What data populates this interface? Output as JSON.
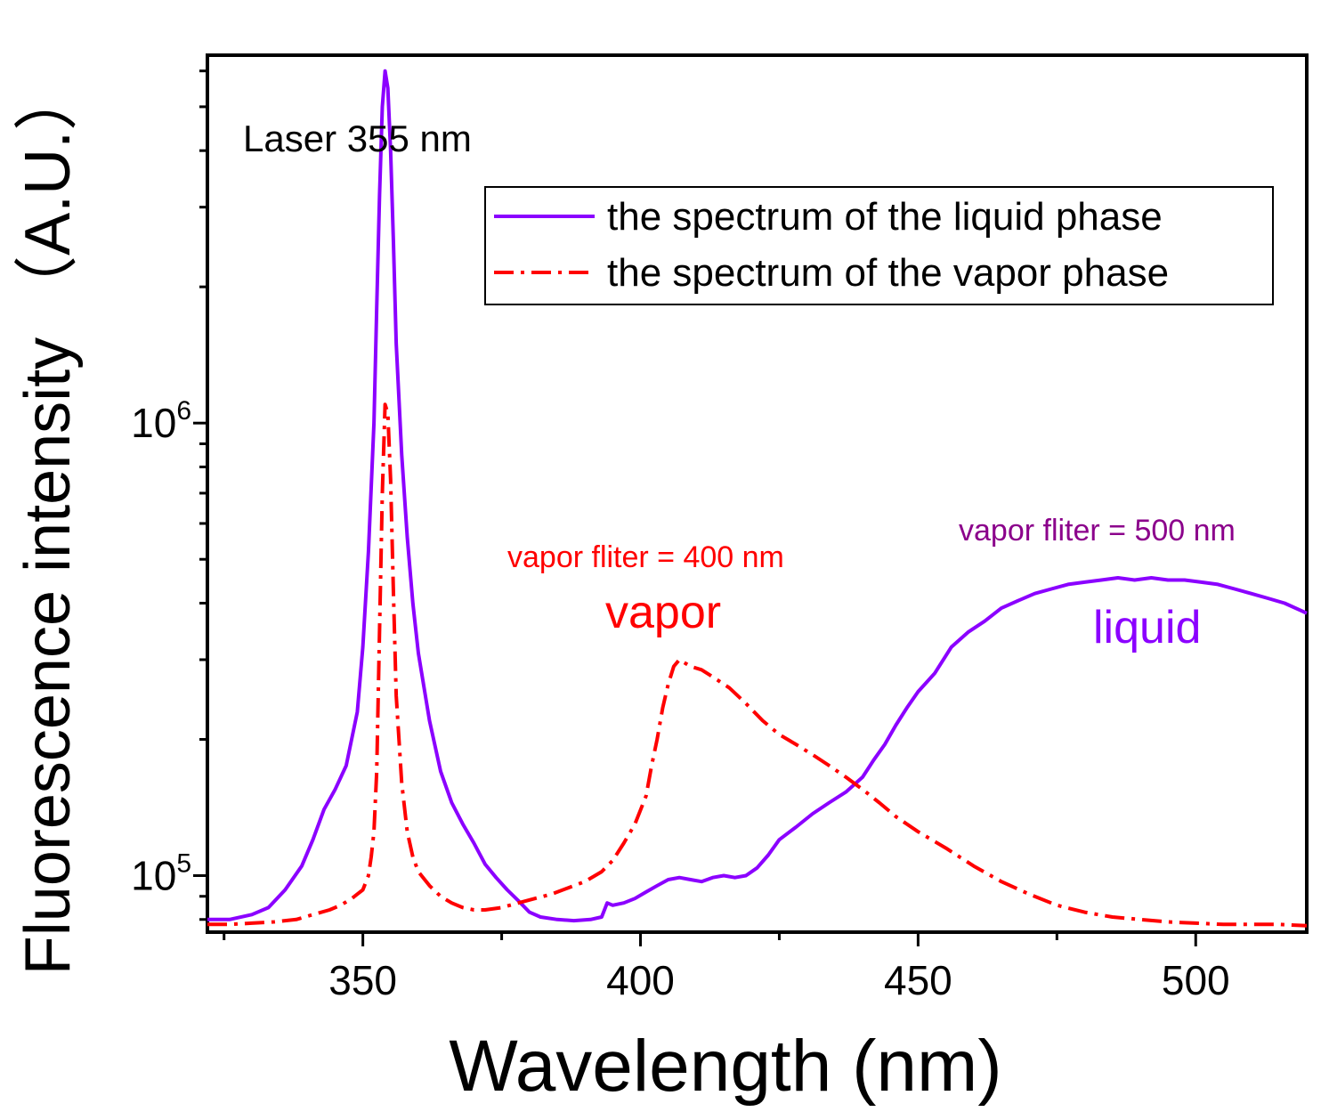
{
  "chart_data": {
    "type": "line",
    "title": "",
    "xlabel": "Wavelength (nm)",
    "ylabel": "Fluorescence intensity （A.U.）",
    "xlim": [
      322,
      520
    ],
    "ylim": [
      75000,
      6500000
    ],
    "yscale": "log",
    "xticks": [
      350,
      400,
      450,
      500
    ],
    "xtick_labels": [
      "350",
      "400",
      "450",
      "500"
    ],
    "yticks": [
      {
        "value": 100000,
        "base": "10",
        "exp": "5"
      },
      {
        "value": 1000000,
        "base": "10",
        "exp": "6"
      }
    ],
    "grid": false,
    "legend": {
      "position": "top-right",
      "entries": [
        {
          "label": "the spectrum of the liquid phase",
          "series": "liquid"
        },
        {
          "label": "the spectrum of the vapor phase",
          "series": "vapor"
        }
      ]
    },
    "series": [
      {
        "name": "the spectrum of the liquid phase",
        "key": "liquid",
        "color": "#8B00FF",
        "style": "solid",
        "x": [
          322,
          326,
          330,
          333,
          336,
          339,
          341,
          343,
          345,
          347,
          349,
          350,
          351,
          352,
          352.5,
          353,
          353.5,
          354,
          354.5,
          355,
          355.5,
          356,
          357,
          358,
          359,
          360,
          362,
          364,
          366,
          368,
          370,
          372,
          374,
          376,
          378,
          380,
          382,
          385,
          388,
          391,
          393,
          394,
          395,
          397,
          399,
          401,
          403,
          405,
          407,
          409,
          411,
          413,
          415,
          417,
          419,
          421,
          423,
          425,
          428,
          431,
          434,
          437,
          440,
          442,
          444,
          446,
          448,
          450,
          453,
          456,
          459,
          462,
          465,
          468,
          471,
          474,
          477,
          480,
          483,
          486,
          489,
          492,
          495,
          498,
          501,
          504,
          507,
          510,
          513,
          516,
          519,
          520
        ],
        "y": [
          80000,
          80000,
          82000,
          85000,
          93000,
          105000,
          120000,
          140000,
          155000,
          175000,
          230000,
          320000,
          520000,
          1000000,
          1800000,
          3200000,
          5000000,
          6000000,
          5500000,
          4000000,
          2500000,
          1500000,
          850000,
          560000,
          400000,
          310000,
          220000,
          170000,
          145000,
          130000,
          118000,
          106000,
          99000,
          93000,
          88000,
          83000,
          81000,
          80000,
          79500,
          80000,
          81000,
          87000,
          86000,
          87000,
          89000,
          92000,
          95000,
          98000,
          99000,
          98000,
          97000,
          99000,
          100000,
          99000,
          100000,
          104000,
          111000,
          120000,
          128000,
          137000,
          145000,
          153000,
          165000,
          180000,
          195000,
          215000,
          235000,
          255000,
          280000,
          320000,
          345000,
          365000,
          390000,
          405000,
          420000,
          430000,
          440000,
          445000,
          450000,
          455000,
          450000,
          455000,
          450000,
          450000,
          445000,
          440000,
          430000,
          420000,
          410000,
          400000,
          385000,
          380000
        ]
      },
      {
        "name": "the spectrum of the vapor phase",
        "key": "vapor",
        "color": "#FF0000",
        "style": "dash-dot",
        "x": [
          322,
          326,
          330,
          334,
          338,
          341,
          344,
          346,
          348,
          349,
          350,
          351,
          351.5,
          352,
          352.5,
          353,
          353.5,
          354,
          354.5,
          355,
          355.5,
          356,
          357,
          358,
          359,
          360,
          362,
          364,
          366,
          368,
          370,
          372,
          375,
          378,
          381,
          384,
          387,
          390,
          393,
          395,
          397,
          399,
          401,
          402,
          403,
          404,
          405,
          406,
          407,
          409,
          411,
          413,
          416,
          419,
          422,
          425,
          428,
          431,
          434,
          437,
          440,
          443,
          446,
          450,
          455,
          460,
          465,
          470,
          475,
          480,
          485,
          490,
          495,
          500,
          505,
          510,
          515,
          520
        ],
        "y": [
          78000,
          78000,
          78500,
          79000,
          80000,
          82000,
          84000,
          86000,
          89000,
          91000,
          93000,
          100000,
          110000,
          125000,
          170000,
          350000,
          700000,
          1100000,
          1050000,
          750000,
          420000,
          250000,
          160000,
          125000,
          110000,
          102000,
          95000,
          90000,
          87000,
          85000,
          84000,
          84000,
          85000,
          87000,
          89000,
          91000,
          94000,
          97000,
          102000,
          108000,
          118000,
          130000,
          150000,
          175000,
          200000,
          235000,
          265000,
          290000,
          300000,
          290000,
          285000,
          275000,
          260000,
          240000,
          220000,
          205000,
          195000,
          185000,
          175000,
          165000,
          155000,
          145000,
          135000,
          125000,
          115000,
          105000,
          97000,
          91000,
          86000,
          83000,
          81000,
          80000,
          79000,
          78500,
          78000,
          78000,
          78000,
          77500
        ]
      }
    ],
    "annotations": [
      {
        "key": "laser",
        "text": "Laser 355 nm",
        "color": "#000000"
      },
      {
        "key": "vapor_filter",
        "text": "vapor fliter = 400 nm",
        "color": "#FF0000"
      },
      {
        "key": "vapor_label",
        "text": "vapor",
        "color": "#FF0000"
      },
      {
        "key": "liquid_filter",
        "text": "vapor fliter = 500 nm",
        "color": "#8B008B"
      },
      {
        "key": "liquid_label",
        "text": "liquid",
        "color": "#8B00FF"
      }
    ]
  }
}
